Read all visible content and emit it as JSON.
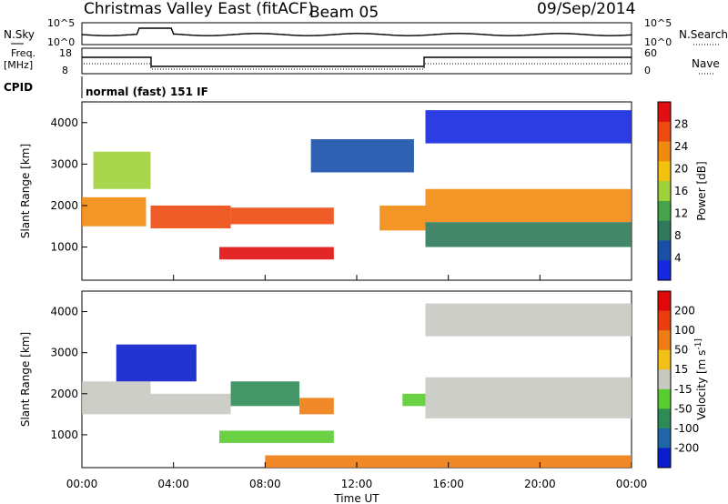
{
  "header": {
    "station": "Christmas Valley East (fitACF)",
    "beam": "Beam 05",
    "date": "09/Sep/2014"
  },
  "strips": {
    "nsky_label": "N.Sky",
    "nsearch_label": "N.Search",
    "noise_ticks": [
      "10^5",
      "10^0"
    ],
    "freq_label": "Freq.",
    "freq_unit": "[MHz]",
    "freq_ticks": [
      "18",
      "8"
    ],
    "nave_label": "Nave",
    "nave_ticks": [
      "60",
      "0"
    ],
    "cpid_label": "CPID",
    "cpid_value": "normal (fast) 151 IF"
  },
  "colors": {
    "power_scale": [
      "#1428e0",
      "#1a4fa8",
      "#2f7a5a",
      "#47a44a",
      "#9fd23a",
      "#f2c20e",
      "#f28a10",
      "#ee4a10",
      "#e01010"
    ],
    "velocity_scale": [
      "#0a1ecb",
      "#1f66a8",
      "#2e8b57",
      "#59cc2f",
      "#c9c9c2",
      "#f2c019",
      "#ef7c12",
      "#ea3d10",
      "#e00808"
    ]
  },
  "chart_data": [
    {
      "type": "heatmap",
      "title": "",
      "xlabel": "Time UT",
      "ylabel": "Slant Range [km]",
      "xticks": [
        "00:00",
        "04:00",
        "08:00",
        "12:00",
        "16:00",
        "20:00",
        "00:00"
      ],
      "yticks": [
        "1000",
        "2000",
        "3000",
        "4000"
      ],
      "xlim": [
        0,
        24
      ],
      "ylim": [
        200,
        4500
      ],
      "colorbar_label": "Power [dB]",
      "colorbar_ticks": [
        "28",
        "24",
        "20",
        "16",
        "12",
        "8",
        "4"
      ],
      "regions": [
        {
          "t": [
            0.0,
            2.8
          ],
          "r": [
            1500,
            2200
          ],
          "level": 6
        },
        {
          "t": [
            0.5,
            3.0
          ],
          "r": [
            2400,
            3300
          ],
          "level": 4
        },
        {
          "t": [
            3.0,
            6.5
          ],
          "r": [
            1450,
            2000
          ],
          "level": 7
        },
        {
          "t": [
            6.5,
            11.0
          ],
          "r": [
            1550,
            1950
          ],
          "level": 7
        },
        {
          "t": [
            6.0,
            11.0
          ],
          "r": [
            700,
            1000
          ],
          "level": 8
        },
        {
          "t": [
            10.0,
            14.5
          ],
          "r": [
            2800,
            3600
          ],
          "level": 1
        },
        {
          "t": [
            13.0,
            15.0
          ],
          "r": [
            1400,
            2000
          ],
          "level": 6
        },
        {
          "t": [
            15.0,
            24.0
          ],
          "r": [
            1600,
            2400
          ],
          "level": 6
        },
        {
          "t": [
            15.0,
            24.0
          ],
          "r": [
            1000,
            1600
          ],
          "level": 2
        },
        {
          "t": [
            15.0,
            24.0
          ],
          "r": [
            3500,
            4300
          ],
          "level": 0
        }
      ]
    },
    {
      "type": "heatmap",
      "title": "",
      "xlabel": "Time UT",
      "ylabel": "Slant Range [km]",
      "xticks": [
        "00:00",
        "04:00",
        "08:00",
        "12:00",
        "16:00",
        "20:00",
        "00:00"
      ],
      "yticks": [
        "1000",
        "2000",
        "3000",
        "4000"
      ],
      "xlim": [
        0,
        24
      ],
      "ylim": [
        200,
        4500
      ],
      "colorbar_label": "Velocity [m s^-1]",
      "colorbar_ticks": [
        "200",
        "100",
        "50",
        "15",
        "-15",
        "-50",
        "-100",
        "-200"
      ],
      "regions": [
        {
          "t": [
            0.0,
            3.0
          ],
          "r": [
            1500,
            2300
          ],
          "level": 4
        },
        {
          "t": [
            1.5,
            5.0
          ],
          "r": [
            2300,
            3200
          ],
          "level": 0
        },
        {
          "t": [
            3.0,
            6.5
          ],
          "r": [
            1500,
            2000
          ],
          "level": 4
        },
        {
          "t": [
            6.5,
            9.5
          ],
          "r": [
            1700,
            2300
          ],
          "level": 2
        },
        {
          "t": [
            9.5,
            11.0
          ],
          "r": [
            1500,
            1900
          ],
          "level": 6
        },
        {
          "t": [
            6.0,
            11.0
          ],
          "r": [
            800,
            1100
          ],
          "level": 3
        },
        {
          "t": [
            14.0,
            15.0
          ],
          "r": [
            1700,
            2000
          ],
          "level": 3
        },
        {
          "t": [
            15.0,
            24.0
          ],
          "r": [
            1400,
            2400
          ],
          "level": 4
        },
        {
          "t": [
            15.0,
            24.0
          ],
          "r": [
            3400,
            4200
          ],
          "level": 4
        },
        {
          "t": [
            8.0,
            24.0
          ],
          "r": [
            200,
            500
          ],
          "level": 6
        }
      ]
    }
  ]
}
